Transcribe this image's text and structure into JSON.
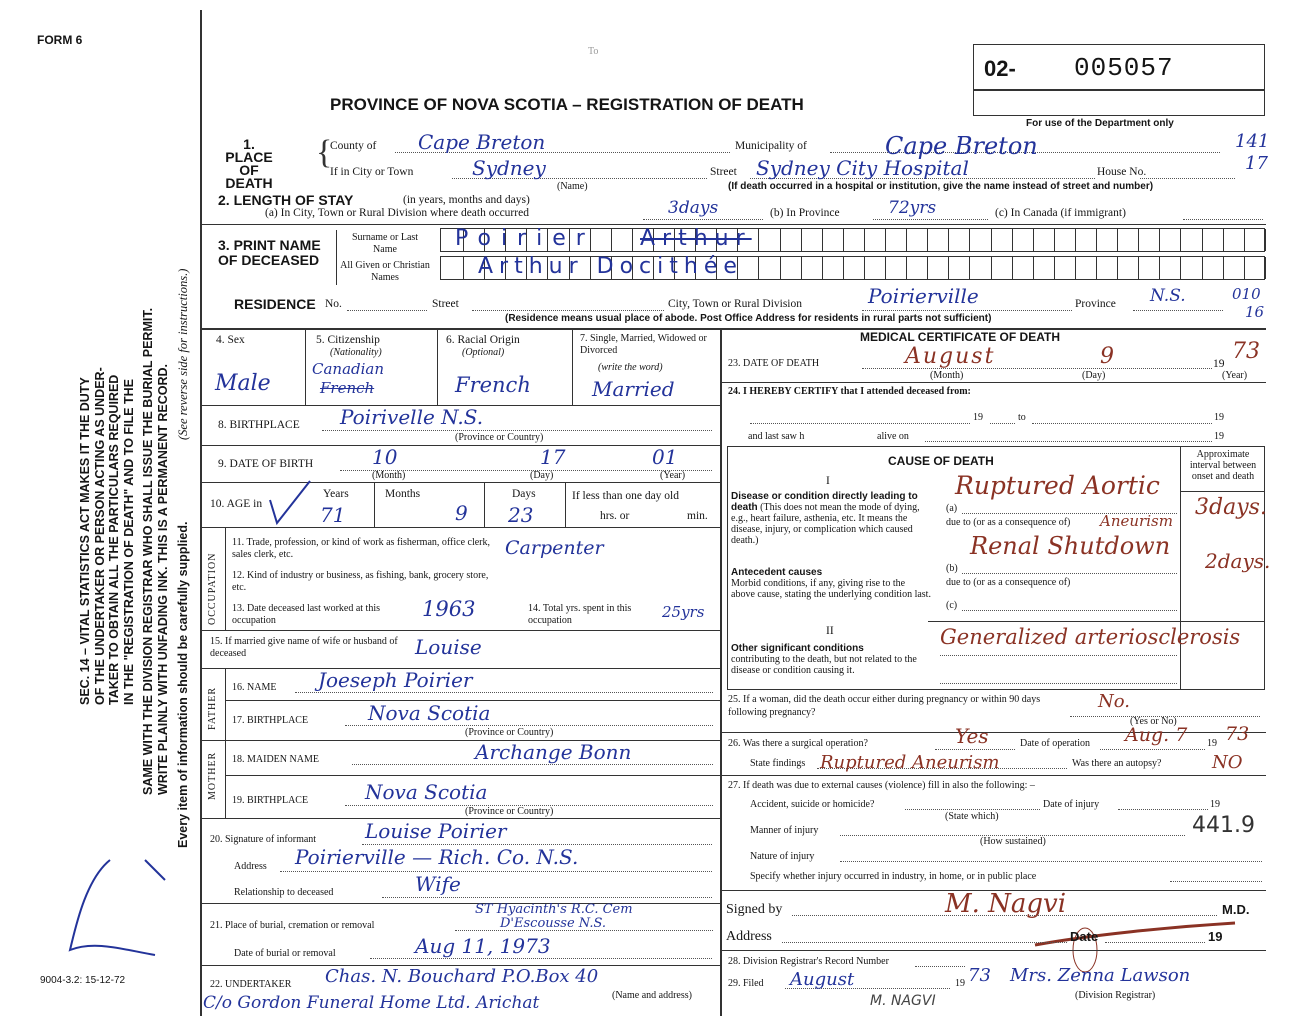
{
  "form_id": "FORM 6",
  "title": "PROVINCE OF NOVA SCOTIA – REGISTRATION OF DEATH",
  "reg_prefix": "02-",
  "reg_number": "005057",
  "dept_only": "For use of the Department only",
  "dept_codes": [
    "141",
    "17",
    "010",
    "16"
  ],
  "stamp_mark": "To",
  "sidebar": {
    "notice": [
      "SEC. 14 – VITAL STATISTICS ACT MAKES IT THE DUTY",
      "OF THE UNDERTAKER OR PERSON ACTING AS UNDER-",
      "TAKER TO OBTAIN ALL THE PARTICULARS REQUIRED",
      "IN THE \"REGISTRATION OF DEATH\" AND TO FILE THE",
      "SAME WITH THE DIVISION REGISTRAR WHO SHALL ISSUE THE BURIAL PERMIT.",
      "WRITE PLAINLY WITH UNFADING INK. THIS IS A PERMANENT RECORD."
    ],
    "instructions": "(See reverse side for instructions.)",
    "every_item": "Every item of information should be carefully supplied.",
    "form_code": "9004-3.2: 15-12-72"
  },
  "place": {
    "label": "1. PLACE OF DEATH",
    "county_label": "County of",
    "county": "Cape Breton",
    "municipality_label": "Municipality of",
    "municipality": "Cape Breton",
    "city_label": "If in City or Town",
    "city": "Sydney",
    "name_note": "(Name)",
    "street_label": "Street",
    "street": "Sydney City Hospital",
    "house_label": "House No.",
    "hospital_note": "(If death occurred in a hospital or institution, give the name instead of street and number)"
  },
  "stay": {
    "label": "2. LENGTH OF STAY",
    "label_note": "(in years, months and days)",
    "a_label": "(a) In City, Town or Rural Division where death occurred",
    "a": "3days",
    "b_label": "(b) In Province",
    "b": "72yrs",
    "c_label": "(c) In Canada (if immigrant)"
  },
  "name": {
    "label": "3. PRINT NAME OF DECEASED",
    "surname_label": "Surname or Last Name",
    "surname": "Poirier",
    "surname_struck": "Arthur",
    "given_label": "All Given or Christian Names",
    "given": "Arthur  Docithée"
  },
  "residence": {
    "label": "RESIDENCE",
    "no_label": "No.",
    "street_label": "Street",
    "city_label": "City, Town or Rural Division",
    "city": "Poirierville",
    "province_label": "Province",
    "province": "N.S.",
    "note": "(Residence means usual place of abode. Post Office Address for residents in rural parts not sufficient)"
  },
  "personal": {
    "sex_label": "4. Sex",
    "sex": "Male",
    "citizenship_label": "5. Citizenship",
    "citizenship_sub": "(Nationality)",
    "citizenship": "Canadian",
    "citizenship_struck": "French",
    "racial_label": "6. Racial Origin",
    "racial_sub": "(Optional)",
    "racial": "French",
    "marital_label": "7. Single, Married, Widowed or Divorced",
    "marital_sub": "(write the word)",
    "marital": "Married",
    "birthplace_label": "8. BIRTHPLACE",
    "birthplace": "Poirivelle  N.S.",
    "birthplace_note": "(Province or Country)",
    "dob_label": "9. DATE OF BIRTH",
    "dob_month": "10",
    "dob_day": "17",
    "dob_year": "01",
    "month_note": "(Month)",
    "day_note": "(Day)",
    "year_note": "(Year)",
    "age_label": "10. AGE in",
    "years_label": "Years",
    "years": "71",
    "months_label": "Months",
    "months": "9",
    "days_label": "Days",
    "days": "23",
    "less_label": "If less than one day old",
    "hrs_label": "hrs. or",
    "min_label": "min."
  },
  "occupation": {
    "side": "OCCUPATION",
    "trade_label": "11. Trade, profession, or kind of work as fisherman, office clerk, sales clerk, etc.",
    "trade": "Carpenter",
    "industry_label": "12. Kind of industry or business, as fishing, bank, grocery store, etc.",
    "last_label": "13. Date deceased last worked at this occupation",
    "last": "1963",
    "total_label": "14. Total yrs. spent in this occupation",
    "total": "25yrs"
  },
  "spouse": {
    "label": "15. If married give name of wife or husband of deceased",
    "value": "Louise"
  },
  "father": {
    "side": "FATHER",
    "name_label": "16. NAME",
    "name": "Joeseph  Poirier",
    "birthplace_label": "17. BIRTHPLACE",
    "birthplace": "Nova Scotia",
    "note": "(Province or Country)"
  },
  "mother": {
    "side": "MOTHER",
    "name_label": "18. MAIDEN NAME",
    "name": "Archange  Bonn",
    "birthplace_label": "19. BIRTHPLACE",
    "birthplace": "Nova Scotia",
    "note": "(Province or Country)"
  },
  "informant": {
    "sig_label": "20. Signature of informant",
    "signature": "Louise Poirier",
    "address_label": "Address",
    "address": "Poirierville — Rich. Co. N.S.",
    "rel_label": "Relationship to deceased",
    "relationship": "Wife"
  },
  "burial": {
    "place_label": "21. Place of burial, cremation or removal",
    "place_1": "ST Hyacinth's R.C. Cem",
    "place_2": "D'Escousse N.S.",
    "date_label": "Date of burial or removal",
    "date": "Aug 11, 1973"
  },
  "undertaker": {
    "label": "22. UNDERTAKER",
    "value": "Chas. N. Bouchard  P.O.Box 40",
    "value_2": "C/o Gordon Funeral Home Ltd. Arichat",
    "note": "(Name and address)"
  },
  "medical": {
    "title": "MEDICAL CERTIFICATE OF DEATH",
    "date_label": "23. DATE OF DEATH",
    "date_month": "August",
    "date_day": "9",
    "date_year_prefix": "19",
    "date_year": "73",
    "month_note": "(Month)",
    "day_note": "(Day)",
    "year_note": "(Year)",
    "certify_label": "24. I HEREBY CERTIFY that I attended deceased from:",
    "nineteen": "19",
    "to": "to",
    "last_saw": "and last saw h",
    "alive_on": "alive on"
  },
  "cause": {
    "title": "CAUSE OF DEATH",
    "interval_label": "Approximate interval between onset and death",
    "part1": "I",
    "direct_bold": "Disease or condition directly leading to death",
    "direct_text": "(This does not mean the mode of dying, e.g., heart failure, asthenia, etc. It means the disease, injury, or complication which caused death.)",
    "antecedent_bold": "Antecedent causes",
    "antecedent_text": "Morbid conditions, if any, giving rise to the above cause, stating the underlying condition last.",
    "a": "(a)",
    "b": "(b)",
    "c": "(c)",
    "due_to": "due to (or as a consequence of)",
    "a_value": "Ruptured Aortic",
    "a_value_2": "Aneurism",
    "a_interval": "3days.",
    "b_value": "Renal Shutdown",
    "b_interval": "2days.",
    "part2": "II",
    "other_bold": "Other significant conditions",
    "other_text": "contributing to the death, but not related to the disease or condition causing it.",
    "other_value": "Generalized arteriosclerosis"
  },
  "q25": {
    "label": "25. If a woman, did the death occur either during pregnancy or within 90 days following pregnancy?",
    "value": "No.",
    "note": "(Yes or No)"
  },
  "q26": {
    "label": "26. Was there a surgical operation?",
    "value": "Yes",
    "date_label": "Date of operation",
    "date": "Aug. 7",
    "year": "73",
    "nineteen": "19",
    "findings_label": "State findings",
    "findings": "Ruptured Aneurism",
    "autopsy_label": "Was there an autopsy?",
    "autopsy": "NO"
  },
  "q27": {
    "label": "27. If death was due to external causes (violence) fill in also the following: –",
    "accident_label": "Accident, suicide or homicide?",
    "state_note": "(State which)",
    "injury_date_label": "Date of injury",
    "nineteen": "19",
    "code": "441.9",
    "manner_label": "Manner of injury",
    "how_note": "(How sustained)",
    "nature_label": "Nature of injury",
    "specify_label": "Specify whether injury occurred in industry, in home, or in public place"
  },
  "signed": {
    "label": "Signed by",
    "value": "M. Nagvi",
    "md": "M.D.",
    "address_label": "Address",
    "date_label": "Date",
    "nineteen": "19"
  },
  "q28": {
    "label": "28. Division Registrar's Record Number"
  },
  "q29": {
    "label": "29. Filed",
    "month": "August",
    "nineteen": "19",
    "year": "73",
    "registrar": "Mrs. Zenna Lawson",
    "note": "(Division Registrar)",
    "printed_name": "M. NAGVI"
  }
}
